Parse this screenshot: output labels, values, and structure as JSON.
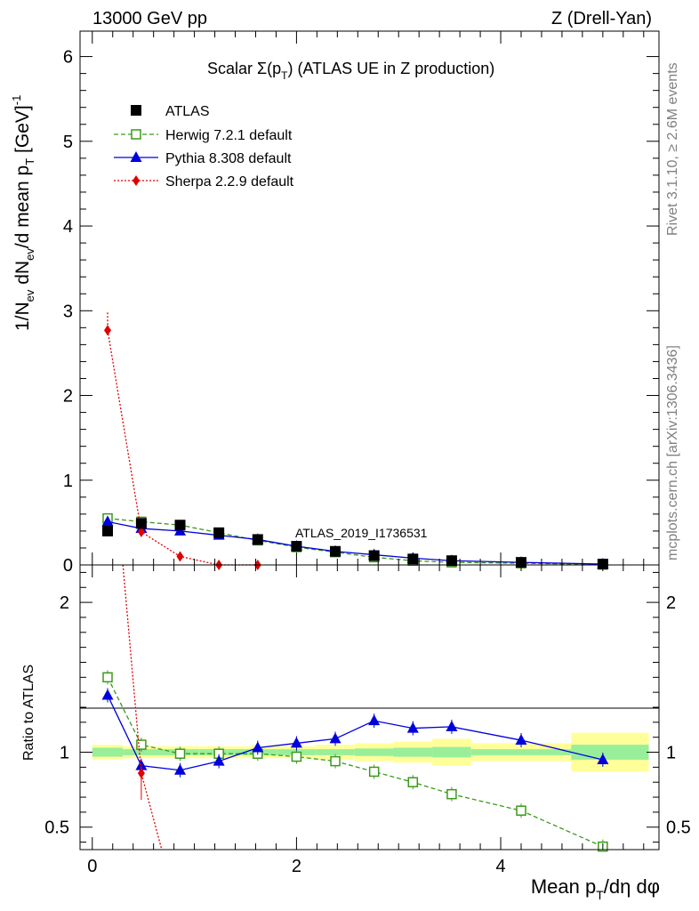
{
  "header": {
    "left": "13000 GeV pp",
    "right": "Z (Drell-Yan)"
  },
  "side_labels": {
    "rivet": "Rivet 3.1.10, ≥ 2.6M events",
    "mcplots": "mcplots.cern.ch [arXiv:1306.3436]"
  },
  "chart_data": [
    {
      "type": "scatter",
      "title_main": "Scalar Σ(p",
      "title_sub": "T",
      "title_end": ") (ATLAS UE in Z production)",
      "watermark": "ATLAS_2019_I1736531",
      "ylabel": "1/N_ev dN_ev/d mean p_T [GeV]^-1",
      "ylim": [
        0,
        6.3
      ],
      "xlim": [
        -0.12,
        5.55
      ],
      "yticks": [
        0,
        1,
        2,
        3,
        4,
        5,
        6
      ],
      "x": [
        0.15,
        0.48,
        0.86,
        1.24,
        1.62,
        2.0,
        2.38,
        2.76,
        3.14,
        3.52,
        4.2,
        5.0
      ],
      "series": [
        {
          "name": "ATLAS",
          "color": "#000000",
          "marker": "square-filled",
          "values": [
            0.4,
            0.49,
            0.47,
            0.38,
            0.3,
            0.22,
            0.16,
            0.11,
            0.07,
            0.05,
            0.03,
            0.01
          ]
        },
        {
          "name": "Herwig 7.2.1 default",
          "color": "#3a9a1a",
          "marker": "square-open",
          "line": "dashed",
          "values": [
            0.55,
            0.51,
            0.47,
            0.38,
            0.29,
            0.21,
            0.15,
            0.09,
            0.05,
            0.03,
            0.02,
            0.005
          ]
        },
        {
          "name": "Pythia 8.308 default",
          "color": "#0000dd",
          "marker": "triangle",
          "line": "solid",
          "values": [
            0.51,
            0.43,
            0.4,
            0.35,
            0.3,
            0.22,
            0.16,
            0.12,
            0.08,
            0.05,
            0.03,
            0.01
          ]
        },
        {
          "name": "Sherpa 2.2.9 default",
          "color": "#e00000",
          "marker": "diamond",
          "line": "dotted",
          "values": [
            2.77,
            0.39,
            0.1,
            0.0,
            0.0,
            null,
            null,
            null,
            null,
            null,
            null,
            null
          ]
        }
      ]
    },
    {
      "type": "scatter",
      "ylabel": "Ratio to ATLAS",
      "ylim": [
        0.35,
        2.25
      ],
      "yticks": [
        0.5,
        1,
        2
      ],
      "xticks": [
        0,
        2,
        4
      ],
      "xlabel": "Mean p_T/dη dφ",
      "x": [
        0.15,
        0.48,
        0.86,
        1.24,
        1.62,
        2.0,
        2.38,
        2.76,
        3.14,
        3.52,
        4.2,
        5.0
      ],
      "series": [
        {
          "name": "Herwig 7.2.1 default",
          "color": "#3a9a1a",
          "values": [
            1.5,
            1.05,
            0.99,
            0.99,
            0.99,
            0.97,
            0.94,
            0.87,
            0.8,
            0.72,
            0.61,
            0.37
          ]
        },
        {
          "name": "Pythia 8.308 default",
          "color": "#0000dd",
          "values": [
            1.38,
            0.91,
            0.88,
            0.94,
            1.03,
            1.06,
            1.09,
            1.21,
            1.16,
            1.17,
            1.08,
            0.95
          ]
        },
        {
          "name": "Sherpa 2.2.9 default",
          "color": "#e00000",
          "values": [
            null,
            0.86,
            null,
            null,
            null,
            null,
            null,
            null,
            null,
            null,
            null,
            null
          ]
        }
      ],
      "band_edges": [
        0.0,
        0.3,
        0.66,
        1.05,
        1.43,
        1.81,
        2.19,
        2.57,
        2.95,
        3.33,
        3.71,
        4.69,
        5.45
      ],
      "band_stat": [
        0.03,
        0.02,
        0.02,
        0.02,
        0.02,
        0.02,
        0.02,
        0.025,
        0.03,
        0.035,
        0.02,
        0.05
      ],
      "band_total": [
        0.05,
        0.04,
        0.04,
        0.04,
        0.04,
        0.04,
        0.05,
        0.06,
        0.07,
        0.09,
        0.06,
        0.13
      ]
    }
  ]
}
